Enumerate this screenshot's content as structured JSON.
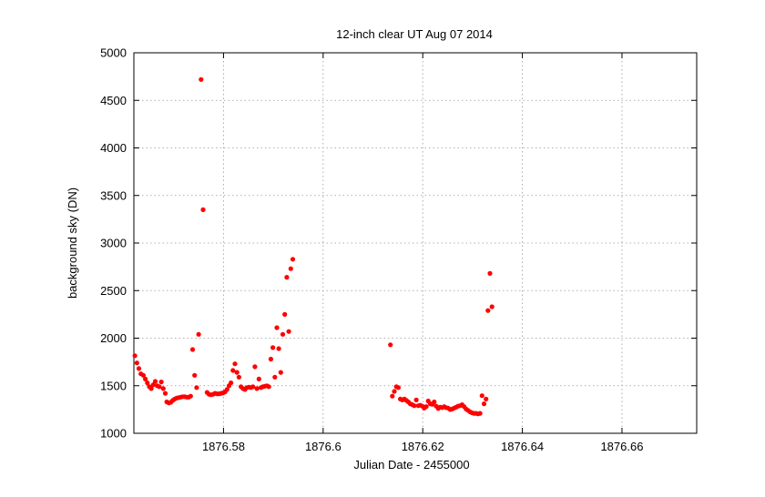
{
  "chart_data": {
    "type": "scatter",
    "title": "12-inch clear UT Aug 07 2014",
    "xlabel": "Julian Date - 2455000",
    "ylabel": "background sky (DN)",
    "xlim": [
      1876.562,
      1876.675
    ],
    "ylim": [
      1000,
      5000
    ],
    "xticks": [
      1876.58,
      1876.6,
      1876.62,
      1876.64,
      1876.66
    ],
    "xtick_labels": [
      "1876.58",
      "1876.6",
      "1876.62",
      "1876.64",
      "1876.66"
    ],
    "yticks": [
      1000,
      1500,
      2000,
      2500,
      3000,
      3500,
      4000,
      4500,
      5000
    ],
    "ytick_labels": [
      "1000",
      "1500",
      "2000",
      "2500",
      "3000",
      "3500",
      "4000",
      "4500",
      "5000"
    ],
    "grid": true,
    "marker_color": "#ff0000",
    "series": [
      {
        "points": [
          [
            1876.5622,
            1815
          ],
          [
            1876.5626,
            1740
          ],
          [
            1876.563,
            1680
          ],
          [
            1876.5634,
            1625
          ],
          [
            1876.5639,
            1610
          ],
          [
            1876.5643,
            1570
          ],
          [
            1876.5647,
            1530
          ],
          [
            1876.5651,
            1490
          ],
          [
            1876.5655,
            1470
          ],
          [
            1876.5659,
            1510
          ],
          [
            1876.5663,
            1545
          ],
          [
            1876.5667,
            1500
          ],
          [
            1876.5671,
            1490
          ],
          [
            1876.5675,
            1540
          ],
          [
            1876.5679,
            1470
          ],
          [
            1876.5683,
            1420
          ],
          [
            1876.5686,
            1330
          ],
          [
            1876.569,
            1320
          ],
          [
            1876.5694,
            1325
          ],
          [
            1876.5698,
            1345
          ],
          [
            1876.5702,
            1360
          ],
          [
            1876.5706,
            1370
          ],
          [
            1876.571,
            1375
          ],
          [
            1876.5714,
            1380
          ],
          [
            1876.5718,
            1385
          ],
          [
            1876.5722,
            1385
          ],
          [
            1876.5726,
            1380
          ],
          [
            1876.573,
            1380
          ],
          [
            1876.5734,
            1390
          ],
          [
            1876.5738,
            1880
          ],
          [
            1876.5742,
            1610
          ],
          [
            1876.5746,
            1480
          ],
          [
            1876.575,
            2040
          ],
          [
            1876.5755,
            4720
          ],
          [
            1876.5759,
            3350
          ],
          [
            1876.5767,
            1430
          ],
          [
            1876.5771,
            1410
          ],
          [
            1876.5775,
            1405
          ],
          [
            1876.5779,
            1410
          ],
          [
            1876.5783,
            1420
          ],
          [
            1876.5787,
            1415
          ],
          [
            1876.5791,
            1415
          ],
          [
            1876.5795,
            1420
          ],
          [
            1876.5799,
            1425
          ],
          [
            1876.5803,
            1435
          ],
          [
            1876.5807,
            1460
          ],
          [
            1876.5811,
            1500
          ],
          [
            1876.5815,
            1530
          ],
          [
            1876.5819,
            1660
          ],
          [
            1876.5823,
            1730
          ],
          [
            1876.5827,
            1640
          ],
          [
            1876.5831,
            1590
          ],
          [
            1876.5835,
            1490
          ],
          [
            1876.5839,
            1470
          ],
          [
            1876.5843,
            1460
          ],
          [
            1876.5847,
            1480
          ],
          [
            1876.5851,
            1485
          ],
          [
            1876.5855,
            1480
          ],
          [
            1876.5859,
            1490
          ],
          [
            1876.5863,
            1700
          ],
          [
            1876.5867,
            1470
          ],
          [
            1876.5871,
            1570
          ],
          [
            1876.5875,
            1480
          ],
          [
            1876.5879,
            1490
          ],
          [
            1876.5883,
            1495
          ],
          [
            1876.5887,
            1500
          ],
          [
            1876.5891,
            1490
          ],
          [
            1876.5895,
            1780
          ],
          [
            1876.5899,
            1900
          ],
          [
            1876.5903,
            1590
          ],
          [
            1876.5907,
            2110
          ],
          [
            1876.5911,
            1890
          ],
          [
            1876.5915,
            1640
          ],
          [
            1876.5919,
            2040
          ],
          [
            1876.5923,
            2250
          ],
          [
            1876.5927,
            2640
          ],
          [
            1876.5931,
            2070
          ],
          [
            1876.5935,
            2730
          ],
          [
            1876.5939,
            2830
          ],
          [
            1876.6135,
            1930
          ],
          [
            1876.6139,
            1390
          ],
          [
            1876.6143,
            1440
          ],
          [
            1876.6147,
            1490
          ],
          [
            1876.6151,
            1480
          ],
          [
            1876.6155,
            1360
          ],
          [
            1876.6159,
            1350
          ],
          [
            1876.6163,
            1360
          ],
          [
            1876.6167,
            1345
          ],
          [
            1876.6171,
            1330
          ],
          [
            1876.6175,
            1310
          ],
          [
            1876.6179,
            1300
          ],
          [
            1876.6183,
            1290
          ],
          [
            1876.6187,
            1350
          ],
          [
            1876.6191,
            1290
          ],
          [
            1876.6195,
            1295
          ],
          [
            1876.6199,
            1285
          ],
          [
            1876.6203,
            1265
          ],
          [
            1876.6207,
            1280
          ],
          [
            1876.6211,
            1340
          ],
          [
            1876.6215,
            1310
          ],
          [
            1876.6219,
            1305
          ],
          [
            1876.6223,
            1330
          ],
          [
            1876.6227,
            1285
          ],
          [
            1876.6231,
            1260
          ],
          [
            1876.6235,
            1275
          ],
          [
            1876.6239,
            1270
          ],
          [
            1876.6243,
            1280
          ],
          [
            1876.6247,
            1270
          ],
          [
            1876.6251,
            1265
          ],
          [
            1876.6255,
            1250
          ],
          [
            1876.6259,
            1255
          ],
          [
            1876.6263,
            1265
          ],
          [
            1876.6267,
            1275
          ],
          [
            1876.6271,
            1285
          ],
          [
            1876.6275,
            1290
          ],
          [
            1876.6279,
            1300
          ],
          [
            1876.6283,
            1280
          ],
          [
            1876.6287,
            1255
          ],
          [
            1876.6291,
            1240
          ],
          [
            1876.6295,
            1225
          ],
          [
            1876.6299,
            1215
          ],
          [
            1876.6303,
            1210
          ],
          [
            1876.6307,
            1210
          ],
          [
            1876.6311,
            1205
          ],
          [
            1876.6315,
            1210
          ],
          [
            1876.6319,
            1395
          ],
          [
            1876.6323,
            1310
          ],
          [
            1876.6327,
            1360
          ],
          [
            1876.6331,
            2290
          ],
          [
            1876.6335,
            2680
          ],
          [
            1876.6339,
            2330
          ]
        ]
      }
    ]
  }
}
